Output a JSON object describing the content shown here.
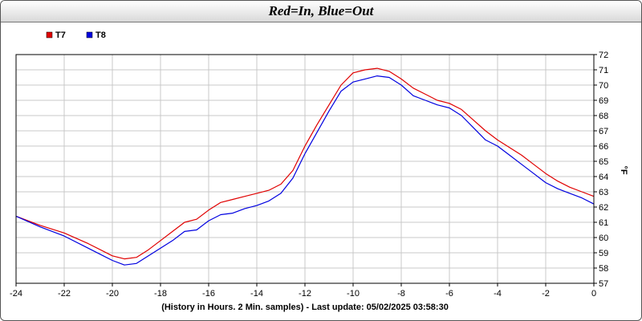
{
  "chart_data": {
    "type": "line",
    "title": "Red=In, Blue=Out",
    "xlabel": "(History in Hours. 2 Min. samples) - Last update: 05/02/2025 03:58:30",
    "ylabel": "°F",
    "xlim": [
      -24,
      0
    ],
    "ylim": [
      57,
      72
    ],
    "xticks": [
      -24,
      -22,
      -20,
      -18,
      -16,
      -14,
      -12,
      -10,
      -8,
      -6,
      -4,
      -2,
      0
    ],
    "yticks": [
      57,
      58,
      59,
      60,
      61,
      62,
      63,
      64,
      65,
      66,
      67,
      68,
      69,
      70,
      71,
      72
    ],
    "grid": true,
    "legend_position": "top-left",
    "series": [
      {
        "name": "T7",
        "color": "#e00000",
        "x": [
          -24,
          -23,
          -22,
          -21,
          -20,
          -19.5,
          -19,
          -18.5,
          -18,
          -17.5,
          -17,
          -16.5,
          -16,
          -15.5,
          -15,
          -14.5,
          -14,
          -13.5,
          -13,
          -12.5,
          -12,
          -11.5,
          -11,
          -10.5,
          -10,
          -9.5,
          -9,
          -8.5,
          -8,
          -7.5,
          -7,
          -6.5,
          -6,
          -5.5,
          -5,
          -4.5,
          -4,
          -3.5,
          -3,
          -2.5,
          -2,
          -1.5,
          -1,
          -0.5,
          0
        ],
        "values": [
          61.4,
          60.8,
          60.3,
          59.6,
          58.8,
          58.6,
          58.7,
          59.2,
          59.8,
          60.4,
          61.0,
          61.2,
          61.8,
          62.3,
          62.5,
          62.7,
          62.9,
          63.1,
          63.5,
          64.4,
          66.0,
          67.4,
          68.7,
          70.0,
          70.8,
          71.0,
          71.1,
          70.9,
          70.4,
          69.8,
          69.4,
          69.0,
          68.8,
          68.4,
          67.7,
          67.0,
          66.4,
          65.9,
          65.4,
          64.8,
          64.2,
          63.7,
          63.3,
          63.0,
          62.7
        ]
      },
      {
        "name": "T8",
        "color": "#0000e0",
        "x": [
          -24,
          -23,
          -22,
          -21,
          -20,
          -19.5,
          -19,
          -18.5,
          -18,
          -17.5,
          -17,
          -16.5,
          -16,
          -15.5,
          -15,
          -14.5,
          -14,
          -13.5,
          -13,
          -12.5,
          -12,
          -11.5,
          -11,
          -10.5,
          -10,
          -9.5,
          -9,
          -8.5,
          -8,
          -7.5,
          -7,
          -6.5,
          -6,
          -5.5,
          -5,
          -4.5,
          -4,
          -3.5,
          -3,
          -2.5,
          -2,
          -1.5,
          -1,
          -0.5,
          0
        ],
        "values": [
          61.4,
          60.7,
          60.1,
          59.3,
          58.5,
          58.2,
          58.3,
          58.8,
          59.3,
          59.8,
          60.4,
          60.5,
          61.1,
          61.5,
          61.6,
          61.9,
          62.1,
          62.4,
          62.9,
          63.9,
          65.5,
          66.9,
          68.3,
          69.6,
          70.2,
          70.4,
          70.6,
          70.5,
          70.0,
          69.3,
          69.0,
          68.7,
          68.5,
          68.0,
          67.2,
          66.4,
          66.0,
          65.4,
          64.8,
          64.2,
          63.6,
          63.2,
          62.9,
          62.6,
          62.2
        ]
      }
    ]
  }
}
